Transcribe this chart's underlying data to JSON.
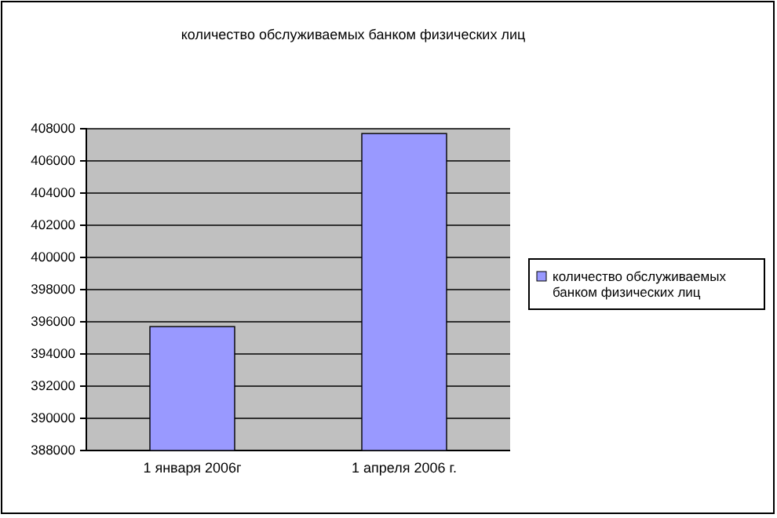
{
  "chart_data": {
    "type": "bar",
    "title": "количество обслуживаемых банком физических лиц",
    "categories": [
      "1  января 2006г",
      "1 апреля 2006 г."
    ],
    "series": [
      {
        "name": "количество обслуживаемых банком физических лиц",
        "color": "#9999ff",
        "values": [
          395700,
          407700
        ]
      }
    ],
    "ylim": [
      388000,
      408000
    ],
    "yticks": [
      388000,
      390000,
      392000,
      394000,
      396000,
      398000,
      400000,
      402000,
      404000,
      406000,
      408000
    ],
    "grid": "y",
    "legend": "right"
  }
}
